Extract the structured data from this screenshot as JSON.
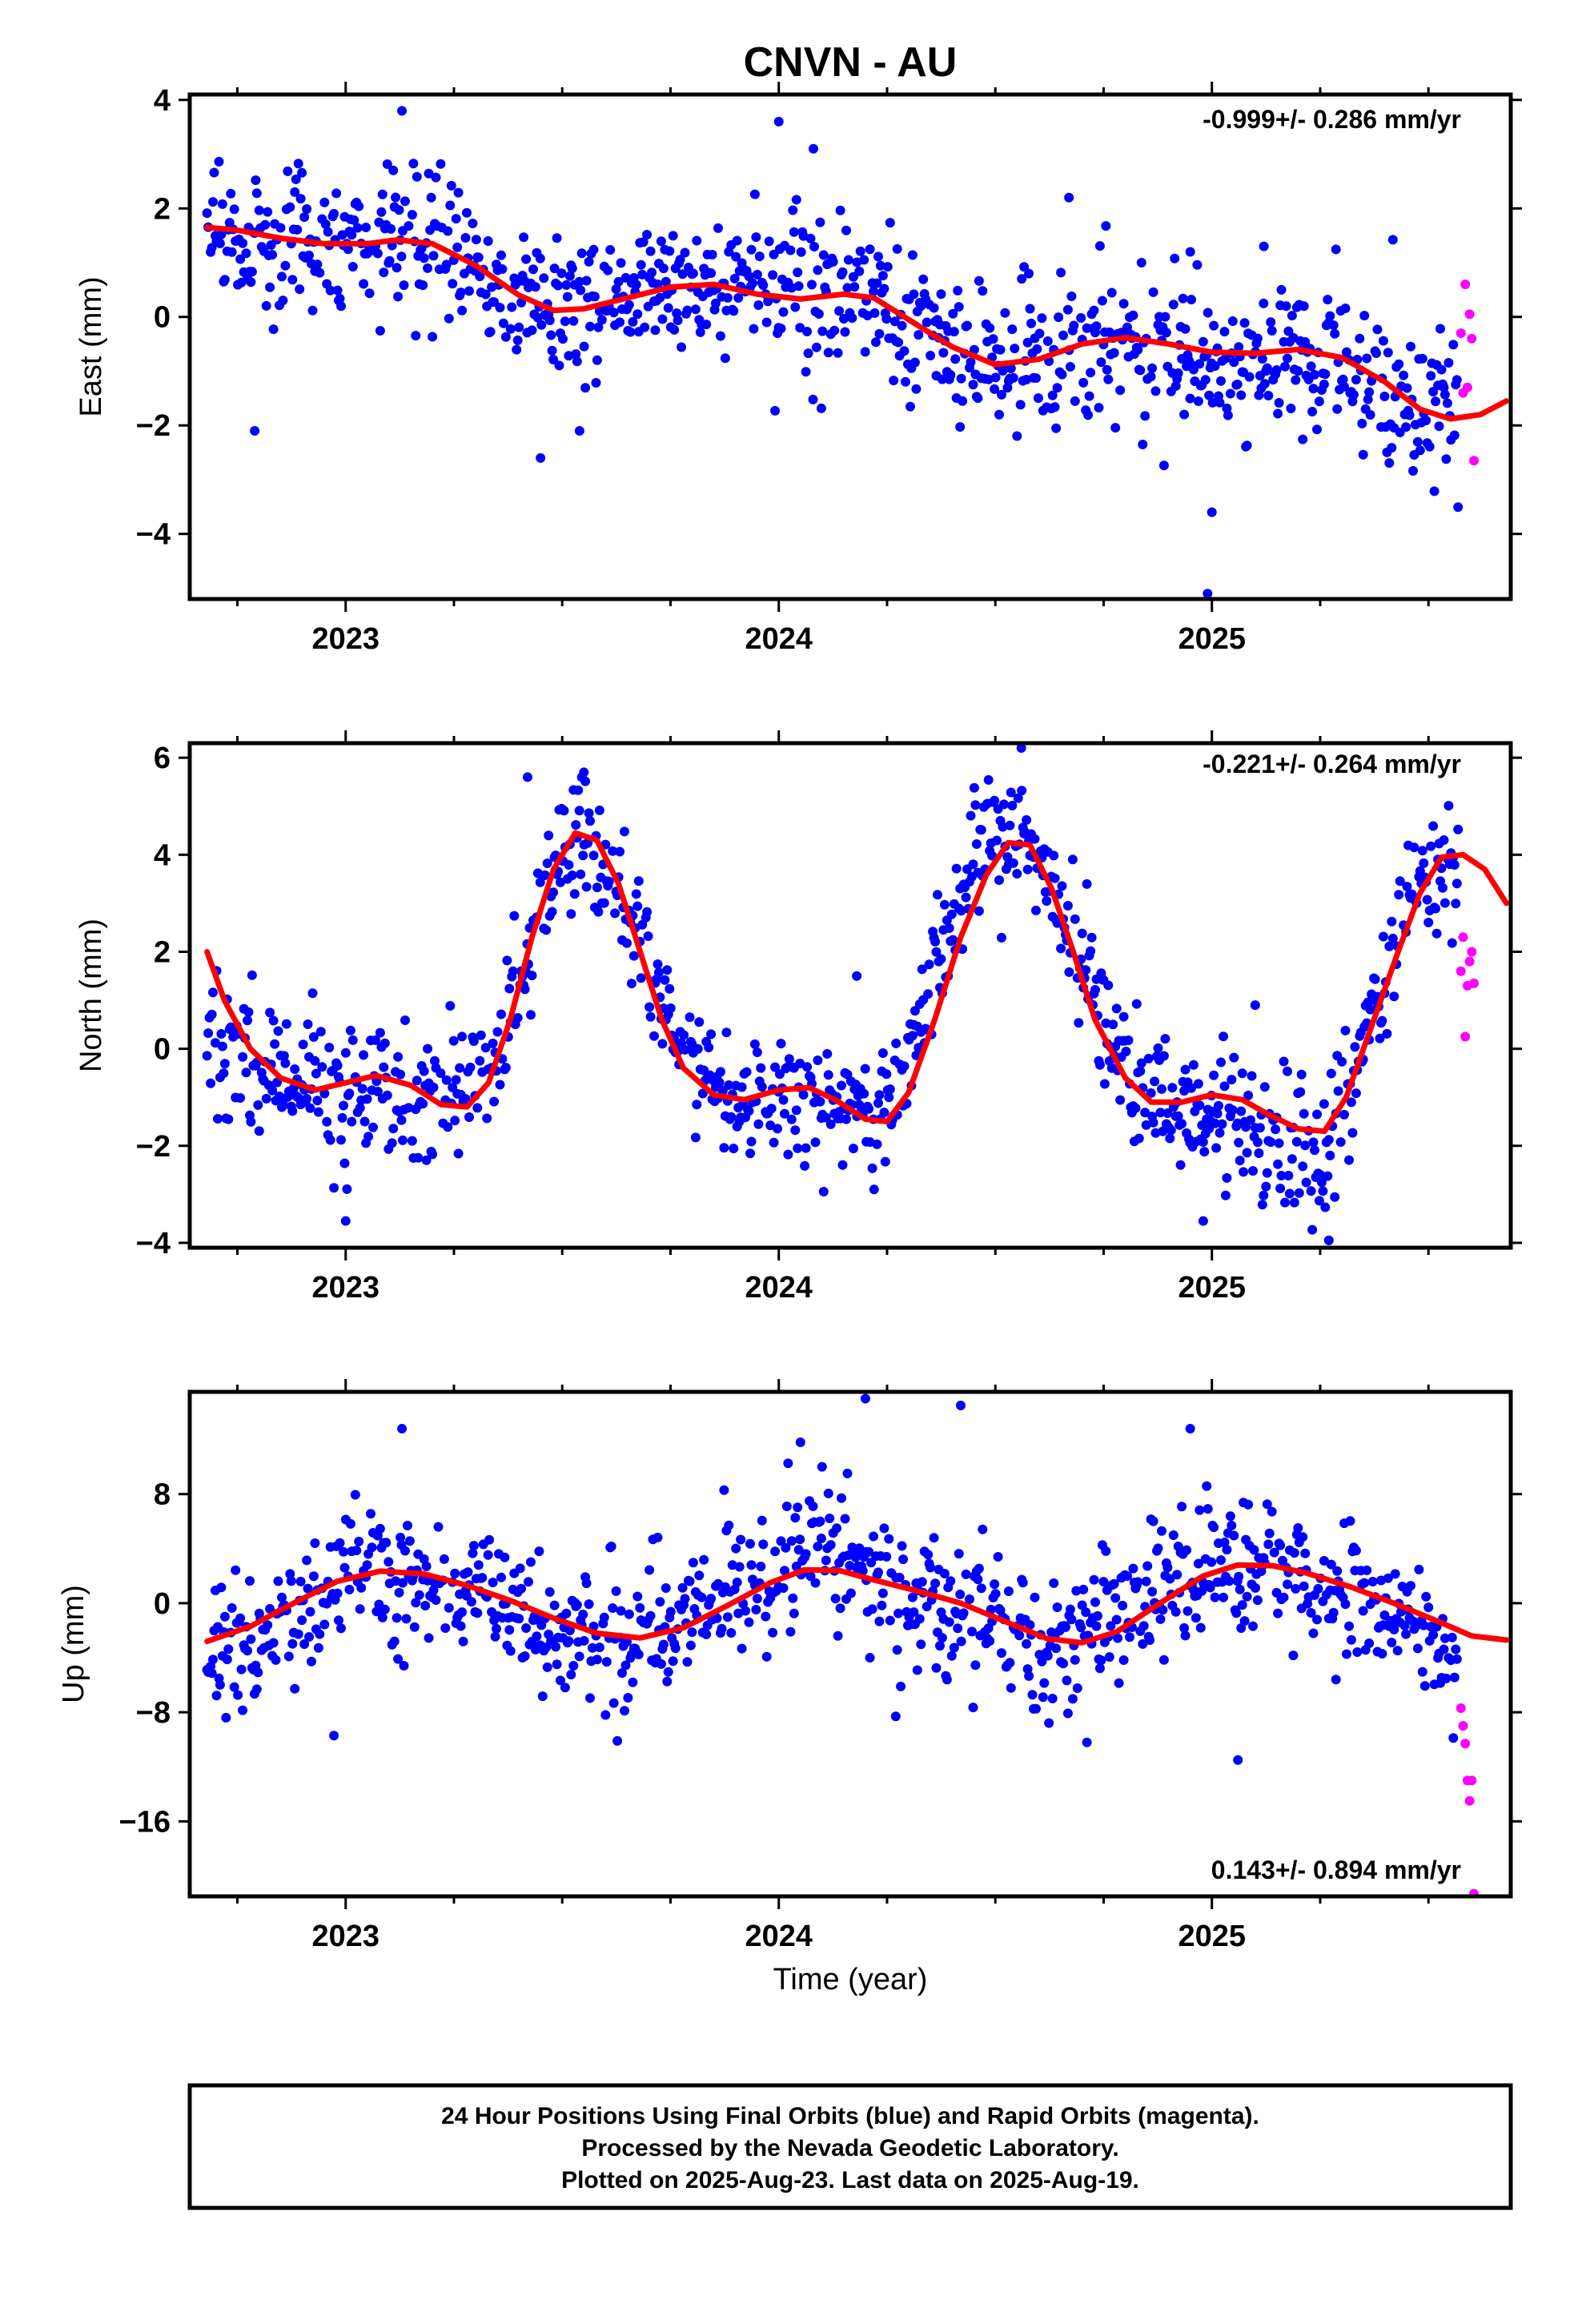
{
  "title": "CNVN - AU",
  "xlabel": "Time (year)",
  "footer": {
    "line1": "24 Hour Positions Using Final Orbits (blue) and Rapid Orbits (magenta).",
    "line2": "Processed by the Nevada Geodetic Laboratory.",
    "line3": "Plotted on 2025-Aug-23. Last data on 2025-Aug-19."
  },
  "colors": {
    "final": "#0000ff",
    "rapid": "#ff00ff",
    "model": "#ff0000",
    "frame": "#000000"
  },
  "chart_data": [
    {
      "type": "scatter",
      "name": "East",
      "ylabel": "East (mm)",
      "rate": "-0.999+/- 0.286 mm/yr",
      "xlim": [
        2022.64,
        2025.69
      ],
      "ylim": [
        -5.2,
        4.1
      ],
      "yticks": [
        4,
        2,
        0,
        -2,
        -4
      ],
      "ytick_labels": [
        "4",
        "2",
        "0",
        "−2",
        "−4"
      ],
      "xticks": [
        2023,
        2024,
        2025
      ],
      "xtick_labels": [
        "2023",
        "2024",
        "2025"
      ],
      "final_trend": [
        [
          2022.68,
          1.55
        ],
        [
          2022.85,
          1.3
        ],
        [
          2023.0,
          1.35
        ],
        [
          2023.15,
          1.45
        ],
        [
          2023.3,
          0.9
        ],
        [
          2023.45,
          0.2
        ],
        [
          2023.6,
          0.3
        ],
        [
          2023.8,
          0.65
        ],
        [
          2024.0,
          0.4
        ],
        [
          2024.1,
          0.35
        ],
        [
          2024.2,
          0.3
        ],
        [
          2024.35,
          -0.4
        ],
        [
          2024.5,
          -0.9
        ],
        [
          2024.6,
          -0.75
        ],
        [
          2024.75,
          -0.4
        ],
        [
          2024.9,
          -0.65
        ],
        [
          2025.0,
          -0.7
        ],
        [
          2025.2,
          -0.65
        ],
        [
          2025.35,
          -1.1
        ],
        [
          2025.5,
          -1.8
        ],
        [
          2025.6,
          -1.7
        ]
      ],
      "final_spread": [
        [
          2022.68,
          0.6
        ],
        [
          2023.2,
          0.7
        ],
        [
          2023.4,
          0.55
        ],
        [
          2023.8,
          0.6
        ],
        [
          2024.1,
          0.8
        ],
        [
          2024.4,
          0.7
        ],
        [
          2024.8,
          0.75
        ],
        [
          2025.2,
          0.8
        ],
        [
          2025.6,
          0.6
        ]
      ],
      "final_outliers": [
        [
          2022.79,
          -2.1
        ],
        [
          2023.13,
          3.8
        ],
        [
          2023.45,
          -2.6
        ],
        [
          2023.54,
          -2.1
        ],
        [
          2024.0,
          3.6
        ],
        [
          2024.08,
          3.1
        ],
        [
          2024.67,
          2.2
        ],
        [
          2024.95,
          1.2
        ],
        [
          2024.99,
          -5.1
        ],
        [
          2025.0,
          -3.6
        ],
        [
          2025.12,
          1.3
        ]
      ],
      "rapid_points": [
        [
          2025.575,
          -0.3
        ],
        [
          2025.58,
          -1.4
        ],
        [
          2025.585,
          0.6
        ],
        [
          2025.59,
          -1.3
        ],
        [
          2025.595,
          0.05
        ],
        [
          2025.6,
          -0.4
        ],
        [
          2025.605,
          -2.65
        ]
      ],
      "model_curve": [
        [
          2022.68,
          1.65
        ],
        [
          2022.75,
          1.6
        ],
        [
          2022.85,
          1.45
        ],
        [
          2022.95,
          1.35
        ],
        [
          2023.05,
          1.35
        ],
        [
          2023.12,
          1.42
        ],
        [
          2023.2,
          1.35
        ],
        [
          2023.3,
          0.95
        ],
        [
          2023.4,
          0.4
        ],
        [
          2023.48,
          0.12
        ],
        [
          2023.55,
          0.15
        ],
        [
          2023.65,
          0.35
        ],
        [
          2023.75,
          0.55
        ],
        [
          2023.85,
          0.6
        ],
        [
          2023.95,
          0.42
        ],
        [
          2024.05,
          0.33
        ],
        [
          2024.15,
          0.42
        ],
        [
          2024.22,
          0.35
        ],
        [
          2024.3,
          -0.05
        ],
        [
          2024.4,
          -0.55
        ],
        [
          2024.5,
          -0.88
        ],
        [
          2024.6,
          -0.78
        ],
        [
          2024.7,
          -0.5
        ],
        [
          2024.8,
          -0.38
        ],
        [
          2024.9,
          -0.5
        ],
        [
          2025.0,
          -0.65
        ],
        [
          2025.1,
          -0.67
        ],
        [
          2025.2,
          -0.6
        ],
        [
          2025.3,
          -0.75
        ],
        [
          2025.4,
          -1.2
        ],
        [
          2025.48,
          -1.7
        ],
        [
          2025.55,
          -1.88
        ],
        [
          2025.62,
          -1.8
        ],
        [
          2025.68,
          -1.55
        ]
      ]
    },
    {
      "type": "scatter",
      "name": "North",
      "ylabel": "North (mm)",
      "rate": "-0.221+/- 0.264 mm/yr",
      "xlim": [
        2022.64,
        2025.69
      ],
      "ylim": [
        -4.1,
        6.3
      ],
      "yticks": [
        6,
        4,
        2,
        0,
        -2,
        -4
      ],
      "ytick_labels": [
        "6",
        "4",
        "2",
        "0",
        "−2",
        "−4"
      ],
      "xticks": [
        2023,
        2024,
        2025
      ],
      "xtick_labels": [
        "2023",
        "2024",
        "2025"
      ],
      "final_trend": [
        [
          2022.68,
          0.5
        ],
        [
          2022.8,
          -0.5
        ],
        [
          2022.95,
          -0.8
        ],
        [
          2023.1,
          -0.8
        ],
        [
          2023.25,
          -1.0
        ],
        [
          2023.35,
          -0.2
        ],
        [
          2023.45,
          3.2
        ],
        [
          2023.55,
          4.3
        ],
        [
          2023.65,
          3.0
        ],
        [
          2023.75,
          0.5
        ],
        [
          2023.85,
          -1.0
        ],
        [
          2024.0,
          -1.1
        ],
        [
          2024.15,
          -1.2
        ],
        [
          2024.25,
          -1.3
        ],
        [
          2024.35,
          1.5
        ],
        [
          2024.45,
          3.8
        ],
        [
          2024.55,
          4.5
        ],
        [
          2024.65,
          3.2
        ],
        [
          2024.75,
          0.5
        ],
        [
          2024.85,
          -1.3
        ],
        [
          2025.0,
          -1.3
        ],
        [
          2025.15,
          -1.8
        ],
        [
          2025.25,
          -2.3
        ],
        [
          2025.35,
          0.0
        ],
        [
          2025.45,
          2.8
        ],
        [
          2025.55,
          3.8
        ]
      ],
      "final_spread": [
        [
          2022.68,
          0.7
        ],
        [
          2023.0,
          0.75
        ],
        [
          2023.5,
          0.7
        ],
        [
          2024.0,
          0.6
        ],
        [
          2024.5,
          0.65
        ],
        [
          2025.0,
          0.7
        ],
        [
          2025.3,
          0.75
        ],
        [
          2025.6,
          0.6
        ]
      ],
      "final_outliers": [
        [
          2023.0,
          -3.55
        ],
        [
          2023.42,
          5.6
        ],
        [
          2023.55,
          5.7
        ],
        [
          2024.18,
          1.5
        ],
        [
          2024.22,
          -2.9
        ],
        [
          2024.56,
          6.2
        ],
        [
          2024.98,
          -3.55
        ],
        [
          2025.27,
          -3.95
        ],
        [
          2025.1,
          0.9
        ]
      ],
      "rapid_points": [
        [
          2025.575,
          1.6
        ],
        [
          2025.58,
          2.3
        ],
        [
          2025.585,
          0.25
        ],
        [
          2025.59,
          1.3
        ],
        [
          2025.595,
          1.8
        ],
        [
          2025.6,
          2.0
        ],
        [
          2025.605,
          1.35
        ]
      ],
      "model_curve": [
        [
          2022.68,
          2.0
        ],
        [
          2022.72,
          1.0
        ],
        [
          2022.78,
          0.0
        ],
        [
          2022.85,
          -0.6
        ],
        [
          2022.93,
          -0.85
        ],
        [
          2023.0,
          -0.7
        ],
        [
          2023.07,
          -0.55
        ],
        [
          2023.15,
          -0.75
        ],
        [
          2023.22,
          -1.15
        ],
        [
          2023.28,
          -1.2
        ],
        [
          2023.33,
          -0.7
        ],
        [
          2023.38,
          0.6
        ],
        [
          2023.43,
          2.3
        ],
        [
          2023.48,
          3.7
        ],
        [
          2023.53,
          4.45
        ],
        [
          2023.58,
          4.3
        ],
        [
          2023.63,
          3.4
        ],
        [
          2023.68,
          2.0
        ],
        [
          2023.73,
          0.6
        ],
        [
          2023.78,
          -0.4
        ],
        [
          2023.85,
          -0.95
        ],
        [
          2023.92,
          -1.05
        ],
        [
          2024.0,
          -0.85
        ],
        [
          2024.07,
          -0.8
        ],
        [
          2024.13,
          -1.05
        ],
        [
          2024.2,
          -1.45
        ],
        [
          2024.25,
          -1.5
        ],
        [
          2024.3,
          -0.9
        ],
        [
          2024.36,
          0.6
        ],
        [
          2024.42,
          2.3
        ],
        [
          2024.48,
          3.6
        ],
        [
          2024.53,
          4.25
        ],
        [
          2024.58,
          4.2
        ],
        [
          2024.63,
          3.3
        ],
        [
          2024.68,
          2.0
        ],
        [
          2024.73,
          0.6
        ],
        [
          2024.8,
          -0.6
        ],
        [
          2024.86,
          -1.1
        ],
        [
          2024.93,
          -1.1
        ],
        [
          2025.0,
          -0.95
        ],
        [
          2025.07,
          -1.05
        ],
        [
          2025.13,
          -1.35
        ],
        [
          2025.2,
          -1.65
        ],
        [
          2025.26,
          -1.7
        ],
        [
          2025.31,
          -1.0
        ],
        [
          2025.37,
          0.5
        ],
        [
          2025.43,
          2.0
        ],
        [
          2025.48,
          3.2
        ],
        [
          2025.53,
          3.95
        ],
        [
          2025.58,
          4.0
        ],
        [
          2025.63,
          3.7
        ],
        [
          2025.68,
          3.0
        ]
      ]
    },
    {
      "type": "scatter",
      "name": "Up",
      "ylabel": "Up (mm)",
      "rate": "0.143+/- 0.894 mm/yr",
      "xlim": [
        2022.64,
        2025.69
      ],
      "ylim": [
        -21.5,
        15.5
      ],
      "yticks": [
        8,
        0,
        -8,
        -16
      ],
      "ytick_labels": [
        "8",
        "0",
        "−8",
        "−16"
      ],
      "xticks": [
        2023,
        2024,
        2025
      ],
      "xtick_labels": [
        "2023",
        "2024",
        "2025"
      ],
      "final_trend": [
        [
          2022.68,
          -4.5
        ],
        [
          2022.85,
          -2.0
        ],
        [
          2023.0,
          1.5
        ],
        [
          2023.15,
          2.5
        ],
        [
          2023.3,
          0.8
        ],
        [
          2023.5,
          -2.2
        ],
        [
          2023.65,
          -2.6
        ],
        [
          2023.8,
          -0.8
        ],
        [
          2024.0,
          2.0
        ],
        [
          2024.1,
          4.0
        ],
        [
          2024.2,
          2.0
        ],
        [
          2024.35,
          0.0
        ],
        [
          2024.5,
          -1.2
        ],
        [
          2024.6,
          -3.8
        ],
        [
          2024.7,
          -2.5
        ],
        [
          2024.85,
          1.0
        ],
        [
          2025.0,
          2.5
        ],
        [
          2025.15,
          2.5
        ],
        [
          2025.3,
          0.8
        ],
        [
          2025.45,
          -1.0
        ],
        [
          2025.55,
          -4.5
        ]
      ],
      "final_spread": [
        [
          2022.68,
          2.2
        ],
        [
          2023.0,
          2.6
        ],
        [
          2023.5,
          2.2
        ],
        [
          2024.0,
          2.8
        ],
        [
          2024.5,
          2.5
        ],
        [
          2025.0,
          2.6
        ],
        [
          2025.6,
          1.8
        ]
      ],
      "final_outliers": [
        [
          2023.13,
          12.8
        ],
        [
          2024.05,
          11.8
        ],
        [
          2024.1,
          10.0
        ],
        [
          2024.2,
          15.0
        ],
        [
          2024.42,
          14.5
        ],
        [
          2024.95,
          12.8
        ],
        [
          2025.06,
          -11.5
        ],
        [
          2023.6,
          -8.2
        ],
        [
          2024.27,
          -8.3
        ]
      ],
      "rapid_points": [
        [
          2025.575,
          -7.7
        ],
        [
          2025.58,
          -9.0
        ],
        [
          2025.585,
          -10.3
        ],
        [
          2025.59,
          -13.0
        ],
        [
          2025.595,
          -14.5
        ],
        [
          2025.6,
          -13.0
        ],
        [
          2025.605,
          -21.3
        ]
      ],
      "model_curve": [
        [
          2022.68,
          -2.8
        ],
        [
          2022.78,
          -1.7
        ],
        [
          2022.88,
          0.0
        ],
        [
          2022.98,
          1.6
        ],
        [
          2023.08,
          2.35
        ],
        [
          2023.18,
          2.15
        ],
        [
          2023.28,
          1.3
        ],
        [
          2023.38,
          0.2
        ],
        [
          2023.48,
          -1.1
        ],
        [
          2023.58,
          -2.2
        ],
        [
          2023.68,
          -2.55
        ],
        [
          2023.78,
          -1.8
        ],
        [
          2023.88,
          -0.2
        ],
        [
          2023.98,
          1.5
        ],
        [
          2024.06,
          2.45
        ],
        [
          2024.14,
          2.4
        ],
        [
          2024.22,
          1.7
        ],
        [
          2024.32,
          0.9
        ],
        [
          2024.42,
          0.0
        ],
        [
          2024.52,
          -1.3
        ],
        [
          2024.62,
          -2.6
        ],
        [
          2024.7,
          -2.9
        ],
        [
          2024.78,
          -2.1
        ],
        [
          2024.88,
          0.0
        ],
        [
          2024.98,
          2.0
        ],
        [
          2025.06,
          2.8
        ],
        [
          2025.14,
          2.75
        ],
        [
          2025.22,
          2.2
        ],
        [
          2025.32,
          1.2
        ],
        [
          2025.42,
          0.0
        ],
        [
          2025.52,
          -1.3
        ],
        [
          2025.6,
          -2.4
        ],
        [
          2025.68,
          -2.7
        ]
      ]
    }
  ]
}
